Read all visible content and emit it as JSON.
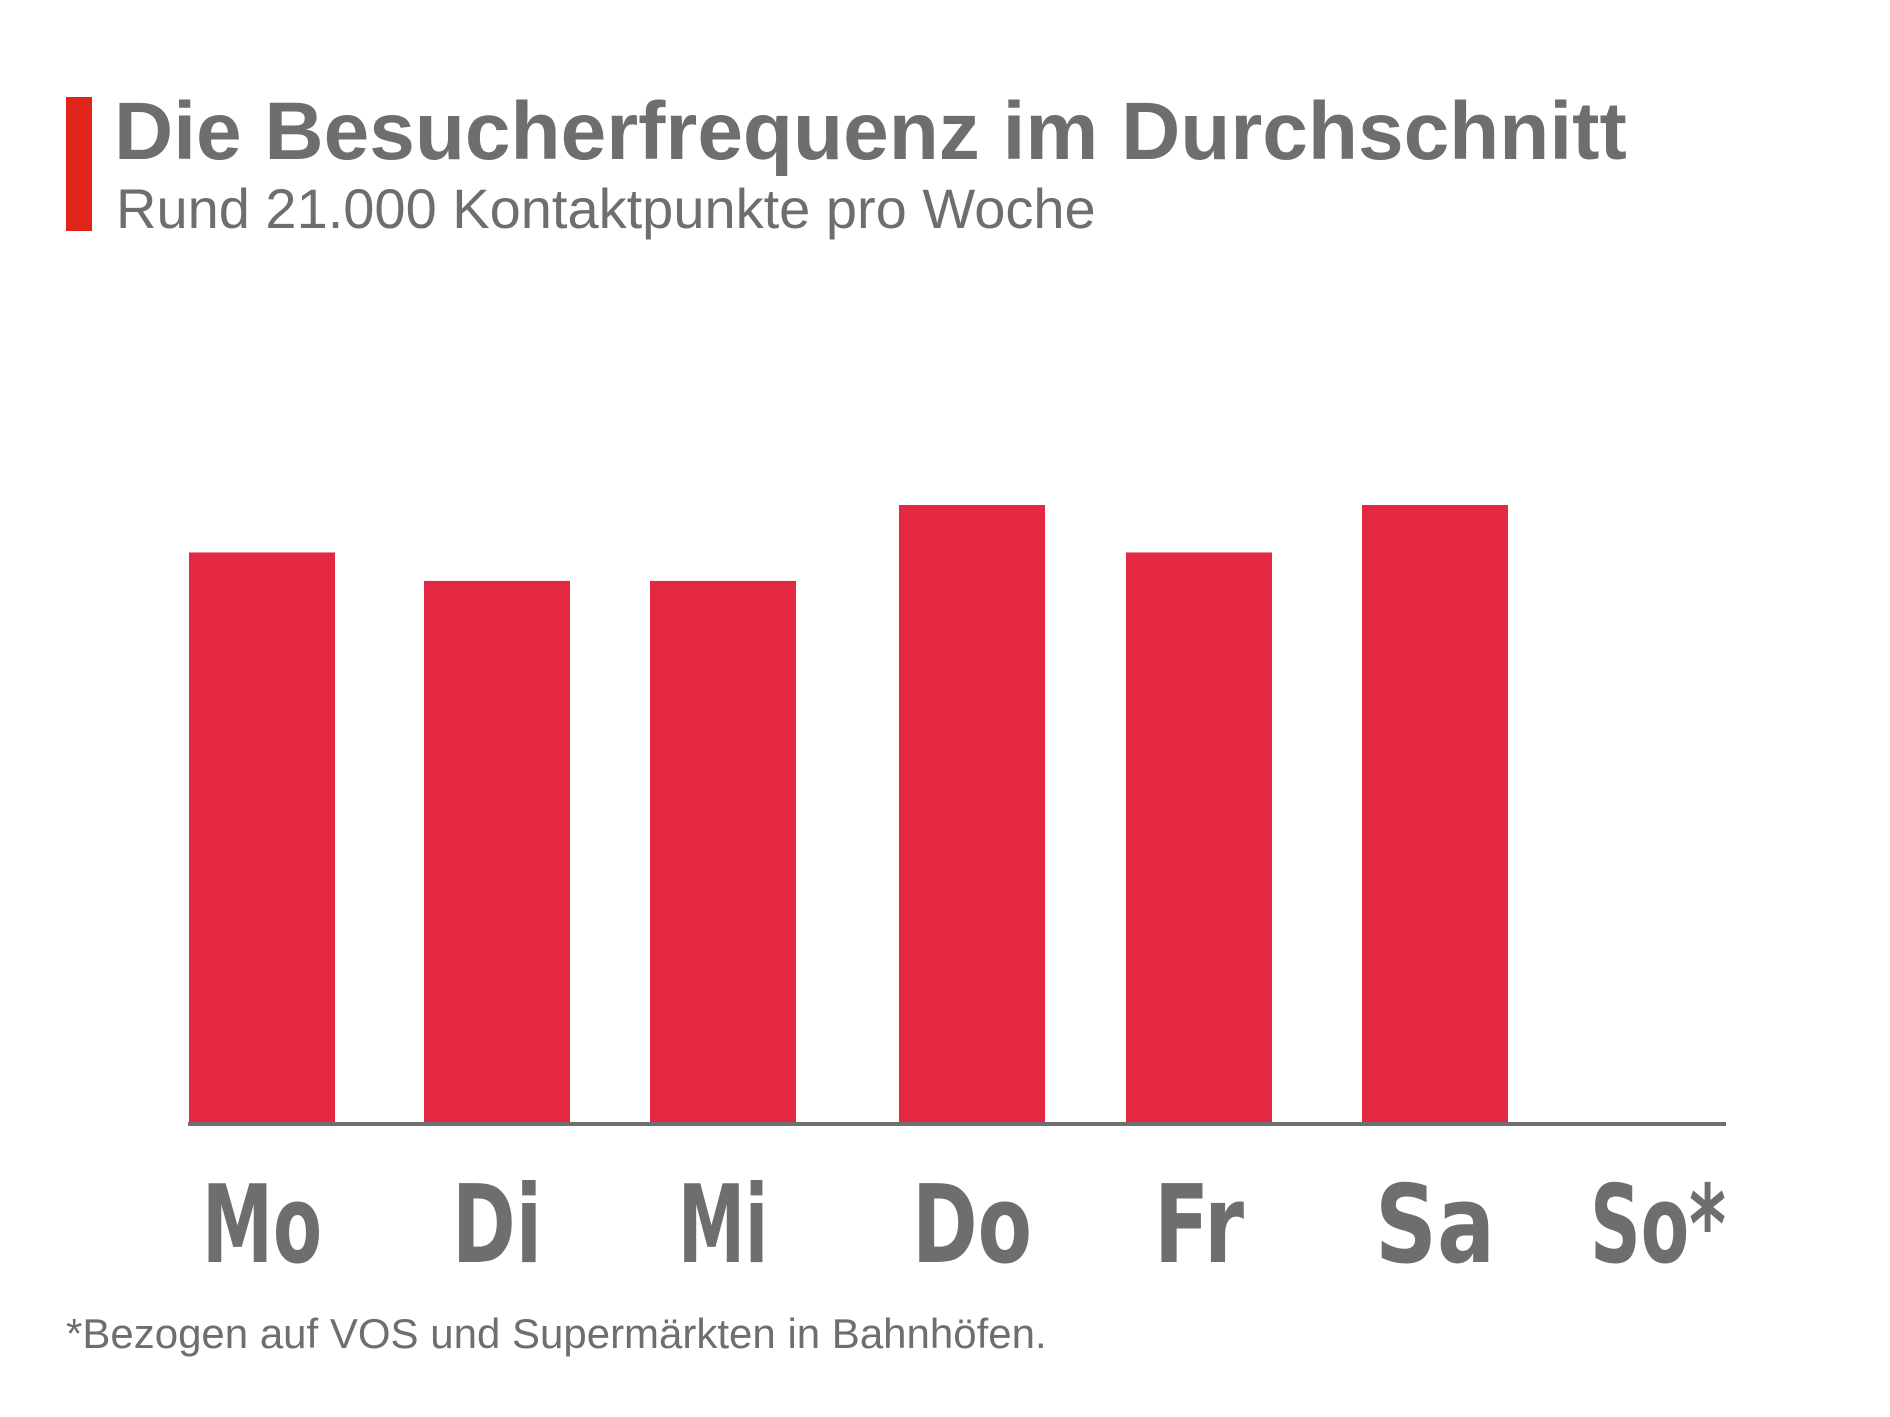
{
  "header": {
    "title": "Die Besucherfrequenz im Durchschnitt",
    "subtitle": "Rund 21.000 Kontaktpunkte pro Woche"
  },
  "footnote": "*Bezogen auf VOS und Supermärkten in Bahnhöfen.",
  "colors": {
    "bar": "#e52842",
    "accent": "#e1251b",
    "text": "#6e6e6e",
    "axis": "#6e6e6e"
  },
  "chart_data": {
    "type": "bar",
    "categories": [
      "Mo",
      "Di",
      "Mi",
      "Do",
      "Fr",
      "Sa",
      "So*"
    ],
    "values": [
      3000,
      2850,
      2850,
      3250,
      3000,
      3250,
      0
    ],
    "title": "",
    "xlabel": "",
    "ylabel": "",
    "ylim": [
      0,
      3250
    ],
    "grid": false,
    "legend": "none"
  }
}
